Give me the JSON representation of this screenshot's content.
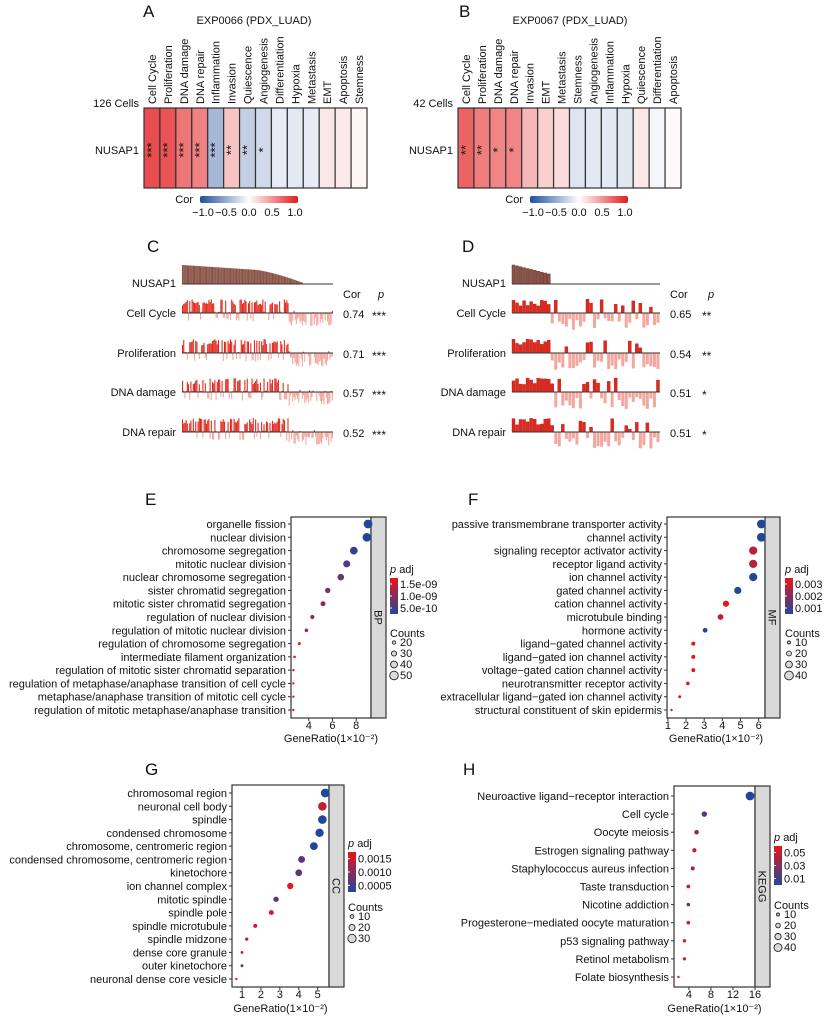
{
  "chart_data": [
    {
      "panel": "A",
      "type": "heatmap",
      "title": "EXP0066 (PDX_LUAD)",
      "cells_label": "126 Cells",
      "row_label": "NUSAP1",
      "columns": [
        "Cell Cycle",
        "Proliferation",
        "DNA damage",
        "DNA repair",
        "Inflammation",
        "Invasion",
        "Quiescence",
        "Angiogenesis",
        "Differentiation",
        "Hypoxia",
        "Metastasis",
        "EMT",
        "Apoptosis",
        "Stemness"
      ],
      "values": [
        0.74,
        0.71,
        0.57,
        0.52,
        -0.38,
        0.25,
        -0.26,
        -0.2,
        -0.1,
        -0.12,
        -0.1,
        0.1,
        0.09,
        0.04
      ],
      "stars": [
        "***",
        "***",
        "***",
        "***",
        "***",
        "**",
        "**",
        "*",
        "",
        "",
        "",
        "",
        "",
        ""
      ],
      "colorbar": {
        "title": "Cor",
        "range": [
          -1,
          1
        ],
        "ticks": [
          "−1.0",
          "−0.5",
          "0.0",
          "0.5",
          "1.0"
        ],
        "low": "#1f4e9a",
        "mid": "#ffffff",
        "high": "#e41a1c"
      }
    },
    {
      "panel": "B",
      "type": "heatmap",
      "title": "EXP0067 (PDX_LUAD)",
      "cells_label": "42 Cells",
      "row_label": "NUSAP1",
      "columns": [
        "Cell Cycle",
        "Proliferation",
        "DNA damage",
        "DNA repair",
        "Invasion",
        "EMT",
        "Metastasis",
        "Stemness",
        "Angiogenesis",
        "Inflammation",
        "Hypoxia",
        "Quiescence",
        "Differentiation",
        "Apoptosis"
      ],
      "values": [
        0.65,
        0.54,
        0.51,
        0.51,
        0.3,
        0.2,
        0.15,
        -0.14,
        -0.12,
        -0.12,
        -0.13,
        0.1,
        -0.05,
        0.02
      ],
      "stars": [
        "**",
        "**",
        "*",
        "*",
        "",
        "",
        "",
        "",
        "",
        "",
        "",
        "",
        "",
        ""
      ],
      "colorbar": {
        "title": "Cor",
        "range": [
          -1,
          1
        ],
        "ticks": [
          "−1.0",
          "−0.5",
          "0.0",
          "0.5",
          "1.0"
        ],
        "low": "#1f4e9a",
        "mid": "#ffffff",
        "high": "#e41a1c"
      }
    },
    {
      "panel": "C",
      "type": "bar",
      "gene": "NUSAP1",
      "n_cells": 126,
      "cor_header": "Cor",
      "p_header": "p",
      "signatures": [
        {
          "name": "Cell Cycle",
          "cor": "0.74",
          "p": "***"
        },
        {
          "name": "Proliferation",
          "cor": "0.71",
          "p": "***"
        },
        {
          "name": "DNA damage",
          "cor": "0.57",
          "p": "***"
        },
        {
          "name": "DNA repair",
          "cor": "0.52",
          "p": "***"
        }
      ],
      "colors": {
        "gene": "#8b5347",
        "positive": "#e0291d",
        "negative": "#f3a79e"
      }
    },
    {
      "panel": "D",
      "type": "bar",
      "gene": "NUSAP1",
      "n_cells": 42,
      "cor_header": "Cor",
      "p_header": "p",
      "signatures": [
        {
          "name": "Cell Cycle",
          "cor": "0.65",
          "p": "**"
        },
        {
          "name": "Proliferation",
          "cor": "0.54",
          "p": "**"
        },
        {
          "name": "DNA damage",
          "cor": "0.51",
          "p": "*"
        },
        {
          "name": "DNA repair",
          "cor": "0.51",
          "p": "*"
        }
      ],
      "colors": {
        "gene": "#8b5347",
        "positive": "#e0291d",
        "negative": "#f3a79e"
      }
    },
    {
      "panel": "E",
      "type": "scatter",
      "category": "BP",
      "xlabel": "GeneRatio(1×10⁻²)",
      "xticks": [
        4,
        6,
        8
      ],
      "xlim": [
        2.5,
        9.25
      ],
      "terms": [
        "organelle fission",
        "nuclear division",
        "chromosome segregation",
        "mitotic nuclear division",
        "nuclear chromosome segregation",
        "sister chromatid segregation",
        "mitotic sister chromatid segregation",
        "regulation of nuclear division",
        "regulation of mitotic nuclear division",
        "regulation of chromosome segregation",
        "intermediate filament organization",
        "regulation of mitotic sister chromatid separation",
        "regulation of metaphase/anaphase transition of cell cycle",
        "metaphase/anaphase transition of mitotic cell cycle",
        "regulation of mitotic metaphase/anaphase transition"
      ],
      "gene_ratio": [
        9.0,
        8.9,
        7.8,
        7.2,
        6.7,
        5.6,
        5.2,
        4.3,
        3.8,
        3.2,
        2.8,
        2.7,
        2.7,
        2.7,
        2.7
      ],
      "counts": [
        51,
        50,
        45,
        41,
        38,
        31,
        29,
        24,
        21,
        17,
        15,
        14,
        14,
        14,
        14
      ],
      "p_adj": [
        1e-12,
        1e-12,
        2e-12,
        5e-12,
        1e-11,
        2e-11,
        4e-11,
        1e-10,
        2e-10,
        1.5e-09,
        1e-09,
        1.6e-09,
        1.3e-09,
        1.3e-09,
        1.3e-09
      ],
      "padj_legend": {
        "title": "p adj",
        "ticks": [
          "1.5e-09",
          "1.0e-09",
          "5.0e-10"
        ]
      },
      "count_legend": {
        "title": "Counts",
        "values": [
          20,
          30,
          40,
          50
        ]
      }
    },
    {
      "panel": "F",
      "type": "scatter",
      "category": "MF",
      "xlabel": "GeneRatio(1×10⁻²)",
      "xticks": [
        1,
        2,
        3,
        4,
        5,
        6
      ],
      "xlim": [
        0.95,
        6.35
      ],
      "terms": [
        "passive transmembrane transporter activity",
        "channel activity",
        "signaling receptor activator activity",
        "receptor ligand activity",
        "ion channel activity",
        "gated channel activity",
        "cation channel activity",
        "microtubule binding",
        "hormone activity",
        "ligand−gated channel activity",
        "ligand−gated ion channel activity",
        "voltage−gated cation channel activity",
        "neurotransmitter receptor activity",
        "extracellular ligand−gated ion channel activity",
        "structural constituent of skin epidermis"
      ],
      "gene_ratio": [
        6.15,
        6.15,
        5.7,
        5.7,
        5.7,
        4.85,
        4.2,
        3.9,
        3.05,
        2.4,
        2.4,
        2.4,
        2.1,
        1.65,
        1.2
      ],
      "counts": [
        40,
        40,
        37,
        37,
        37,
        32,
        27,
        25,
        20,
        16,
        16,
        16,
        14,
        11,
        8
      ],
      "p_adj": [
        0.0003,
        0.0003,
        0.0019,
        0.0019,
        0.0003,
        0.0003,
        0.0035,
        0.0021,
        0.0003,
        0.0035,
        0.0035,
        0.0035,
        0.0035,
        0.0035,
        0.0034
      ],
      "padj_legend": {
        "title": "p adj",
        "ticks": [
          "0.003",
          "0.002",
          "0.001"
        ]
      },
      "count_legend": {
        "title": "Counts",
        "values": [
          10,
          20,
          30,
          40
        ]
      }
    },
    {
      "panel": "G",
      "type": "scatter",
      "category": "CC",
      "xlabel": "GeneRatio(1×10⁻²)",
      "xticks": [
        1,
        2,
        3,
        4,
        5
      ],
      "xlim": [
        0.47,
        5.6
      ],
      "terms": [
        "chromosomal region",
        "neuronal cell body",
        "spindle",
        "condensed chromosome",
        "chromosome, centromeric region",
        "condensed chromosome, centromeric region",
        "kinetochore",
        "ion channel complex",
        "mitotic spindle",
        "spindle pole",
        "spindle microtubule",
        "spindle midzone",
        "dense core granule",
        "outer kinetochore",
        "neuronal dense core vesicle"
      ],
      "gene_ratio": [
        5.4,
        5.25,
        5.25,
        5.1,
        4.8,
        4.15,
        4.0,
        3.55,
        2.8,
        2.55,
        1.7,
        1.25,
        1.0,
        1.0,
        0.7
      ],
      "counts": [
        32,
        31,
        31,
        30,
        28,
        24,
        23,
        21,
        17,
        15,
        11,
        8,
        6,
        6,
        4
      ],
      "p_adj": [
        3e-05,
        0.0009,
        3e-05,
        3e-05,
        3e-05,
        0.0001,
        0.0001,
        0.0019,
        0.0001,
        0.0014,
        0.0015,
        0.0005,
        0.0014,
        0.0001,
        0.0019
      ],
      "padj_legend": {
        "title": "p adj",
        "ticks": [
          "0.0015",
          "0.0010",
          "0.0005"
        ]
      },
      "count_legend": {
        "title": "Counts",
        "values": [
          10,
          20,
          30
        ]
      }
    },
    {
      "panel": "H",
      "type": "scatter",
      "category": "KEGG",
      "xlabel": "GeneRatio(1×10⁻²)",
      "xticks": [
        4,
        8,
        12,
        16
      ],
      "xlim": [
        1.3,
        16
      ],
      "terms": [
        "Neuroactive ligand−receptor interaction",
        "Cell cycle",
        "Oocyte meiosis",
        "Estrogen signaling pathway",
        "Staphylococcus aureus infection",
        "Taste transduction",
        "Nicotine addiction",
        "Progesterone−mediated oocyte maturation",
        "p53 signaling pathway",
        "Retinol metabolism",
        "Folate biosynthesis"
      ],
      "gene_ratio": [
        15.1,
        6.8,
        5.4,
        5.0,
        4.7,
        3.9,
        3.9,
        3.9,
        3.2,
        3.2,
        2.1
      ],
      "counts": [
        45,
        25,
        20,
        18,
        17,
        15,
        14,
        14,
        13,
        12,
        7
      ],
      "p_adj": [
        0.001,
        0.003,
        0.012,
        0.03,
        0.01,
        0.032,
        0.008,
        0.045,
        0.055,
        0.05,
        0.045
      ],
      "padj_legend": {
        "title": "p adj",
        "ticks": [
          "0.05",
          "0.03",
          "0.01"
        ]
      },
      "count_legend": {
        "title": "Counts",
        "values": [
          10,
          20,
          30,
          40
        ]
      }
    }
  ],
  "palette": {
    "low_padj": "#22479a",
    "high_padj": "#e8141b",
    "strip": "#d9d9d9"
  }
}
